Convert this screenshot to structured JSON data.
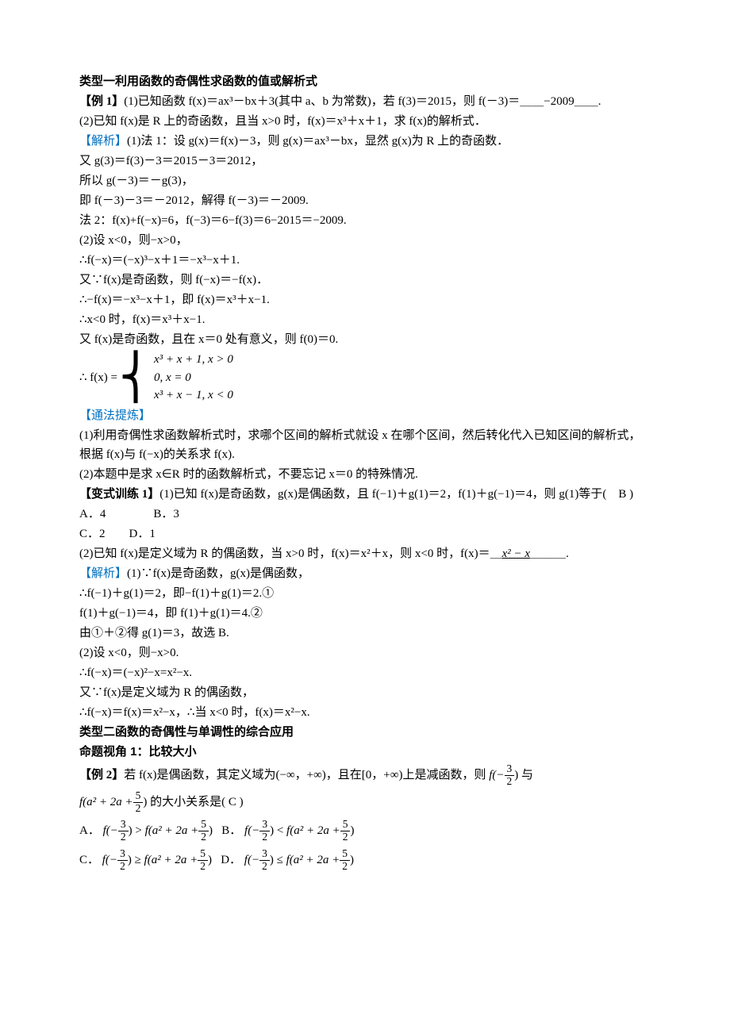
{
  "type1_heading": "类型一利用函数的奇偶性求函数的值或解析式",
  "ex1_label": "【例 1】",
  "ex1_1": "(1)已知函数 f(x)＝ax³－bx＋3(其中 a、b 为常数)，若 f(3)＝2015，则 f(－3)＝＿＿−2009＿＿.",
  "ex1_2": "(2)已知 f(x)是 R 上的奇函数，且当 x>0 时，f(x)＝x³＋x＋1，求 f(x)的解析式．",
  "analysis_label": "【解析】",
  "sol1_l1": "(1)法 1：设 g(x)＝f(x)－3，则 g(x)＝ax³－bx，显然 g(x)为 R 上的奇函数．",
  "sol1_l2": "又 g(3)＝f(3)－3＝2015－3＝2012，",
  "sol1_l3": "所以 g(－3)＝－g(3)，",
  "sol1_l4": "即 f(－3)－3＝－2012，解得 f(－3)＝－2009.",
  "sol1_l5": "法 2：f(x)+f(−x)=6，f(−3)＝6−f(3)＝6−2015＝−2009.",
  "sol1_l6": "(2)设 x<0，则−x>0，",
  "sol1_l7": "∴f(−x)＝(−x)³−x＋1＝−x³−x＋1.",
  "sol1_l8": "又∵f(x)是奇函数，则 f(−x)＝−f(x)．",
  "sol1_l9": "∴−f(x)＝−x³−x＋1，即 f(x)＝x³＋x−1.",
  "sol1_l10": "∴x<0 时，f(x)＝x³＋x−1.",
  "sol1_l11": "又 f(x)是奇函数，且在 x＝0 处有意义，则 f(0)＝0.",
  "piecewise_lead": "∴ f(x) =",
  "case1": "x³ + x + 1, x > 0",
  "case2": "0, x = 0",
  "case3": "x³ + x − 1, x < 0",
  "method_label": "【通法提炼】",
  "method_l1": "(1)利用奇偶性求函数解析式时，求哪个区间的解析式就设 x 在哪个区间，然后转化代入已知区间的解析式，根据 f(x)与 f(−x)的关系求 f(x).",
  "method_l2": "(2)本题中是求 x∈R 时的函数解析式，不要忘记 x＝0 的特殊情况.",
  "var1_label": "【变式训练 1】",
  "var1_q1": "(1)已知 f(x)是奇函数，g(x)是偶函数，且 f(−1)＋g(1)＝2，f(1)＋g(−1)＝4，则 g(1)等于(　B )",
  "var1_optA": "A．4",
  "var1_optB": "B．3",
  "var1_optC": "C．2",
  "var1_optD": "D．1",
  "var1_q2a": "(2)已知 f(x)是定义域为 R 的偶函数，当 x>0 时，f(x)＝x²＋x，则 x<0 时，f(x)＝＿",
  "var1_q2_ans": "x² − x",
  "var1_q2b": "＿＿＿.",
  "sol2_l1": "(1)∵f(x)是奇函数，g(x)是偶函数，",
  "sol2_l2": "∴f(−1)＋g(1)＝2，即−f(1)＋g(1)＝2.①",
  "sol2_l3": "f(1)＋g(−1)＝4，即 f(1)＋g(1)＝4.②",
  "sol2_l4": "由①＋②得 g(1)＝3，故选 B.",
  "sol2_l5": "(2)设 x<0，则−x>0.",
  "sol2_l6": "∴f(−x)＝(−x)²−x=x²−x.",
  "sol2_l7": "又∵f(x)是定义域为 R 的偶函数，",
  "sol2_l8": "∴f(−x)＝f(x)＝x²−x，∴当 x<0 时，f(x)＝x²−x.",
  "type2_heading": "类型二函数的奇偶性与单调性的综合应用",
  "angle1": "命题视角 1：比较大小",
  "ex2_label": "【例 2】",
  "ex2_q1": "若 f(x)是偶函数，其定义域为(−∞，+∞)，且在[0，+∞)上是减函数，则",
  "ex2_q2": "与",
  "ex2_q3": "的大小关系是( C )",
  "ex2_fneg": "f(−",
  "ex2_fa": "f(a² + 2a +",
  "closeA": ")",
  "three": "3",
  "two": "2",
  "five": "5",
  "optA": "A．",
  "optB": "B．",
  "optC": "C．",
  "optD": "D．",
  "gt": " > ",
  "lt": " < ",
  "ge": " ≥ ",
  "le": " ≤ "
}
